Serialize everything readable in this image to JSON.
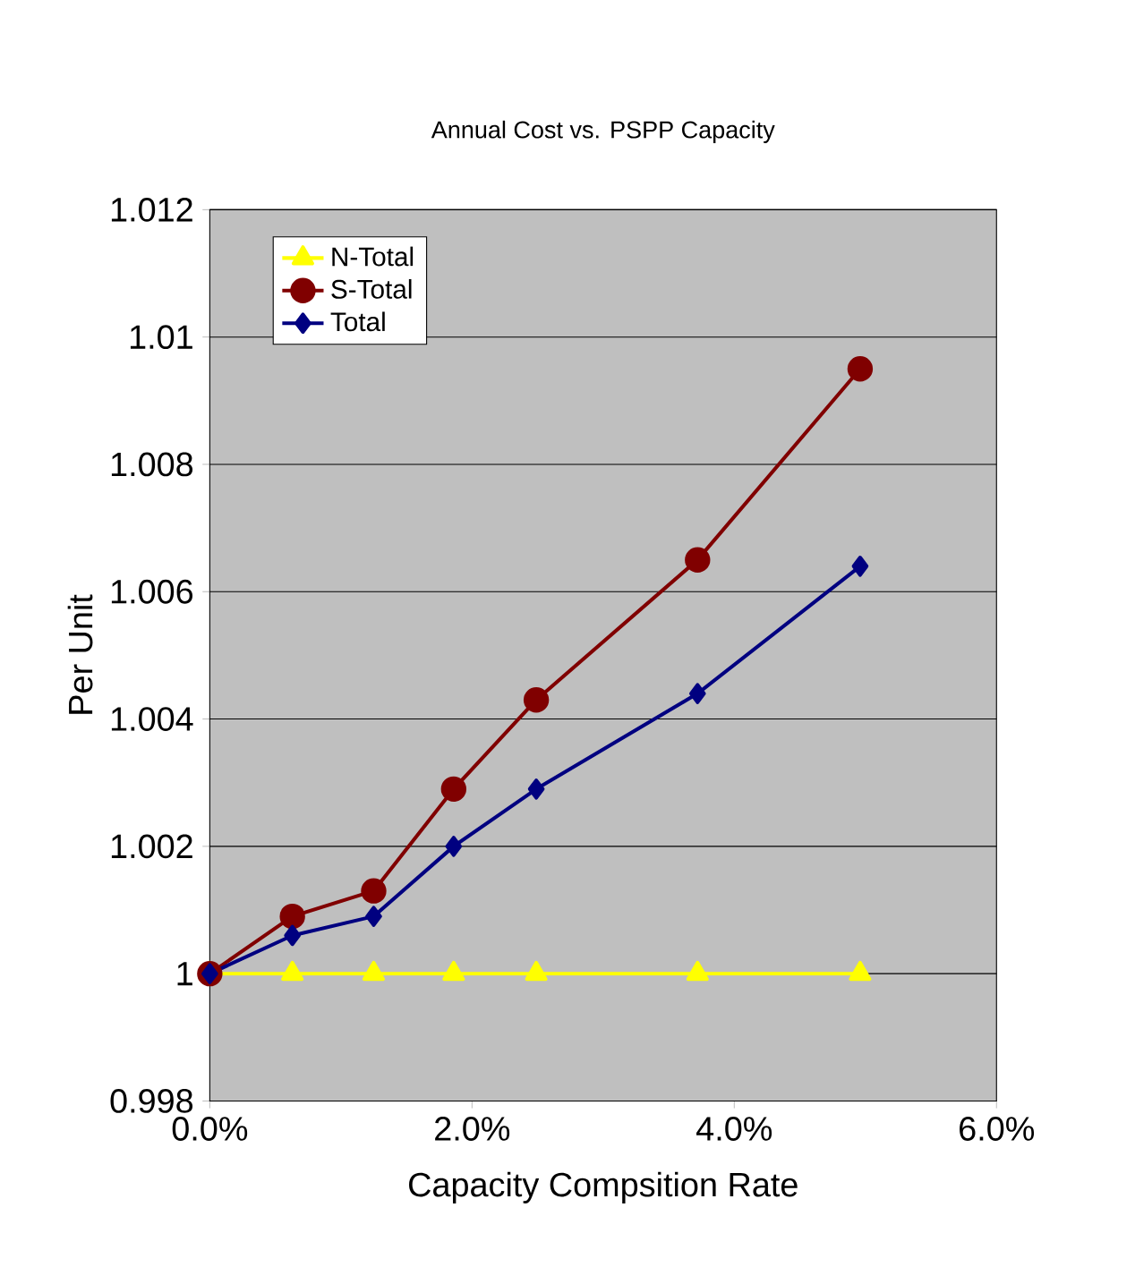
{
  "chart_data": {
    "type": "line",
    "title": "Annual Cost vs. PSPP Capacity",
    "xlabel": "Capacity Compsition Rate",
    "ylabel": "Per Unit",
    "x": [
      0,
      0.0063,
      0.0125,
      0.0186,
      0.0249,
      0.0372,
      0.0496
    ],
    "series": [
      {
        "name": "N-Total",
        "color": "#ffff00",
        "marker": "triangle",
        "values": [
          1,
          1,
          1,
          1,
          1,
          1,
          1
        ]
      },
      {
        "name": "S-Total",
        "color": "#800000",
        "marker": "circle",
        "values": [
          1,
          1.0009,
          1.0013,
          1.0029,
          1.0043,
          1.0065,
          1.0095
        ]
      },
      {
        "name": "Total",
        "color": "#000080",
        "marker": "diamond",
        "values": [
          1,
          1.0006,
          1.0009,
          1.002,
          1.0029,
          1.0044,
          1.0064
        ]
      }
    ],
    "xlim": [
      0,
      0.06
    ],
    "xticks": [
      {
        "value": 0,
        "label": "0.0%"
      },
      {
        "value": 0.02,
        "label": "2.0%"
      },
      {
        "value": 0.04,
        "label": "4.0%"
      },
      {
        "value": 0.06,
        "label": "6.0%"
      }
    ],
    "ylim": [
      0.998,
      1.012
    ],
    "yticks": [
      0.998,
      1,
      1.002,
      1.004,
      1.006,
      1.008,
      1.01,
      1.012
    ],
    "grid": "y",
    "legend": "top left"
  }
}
